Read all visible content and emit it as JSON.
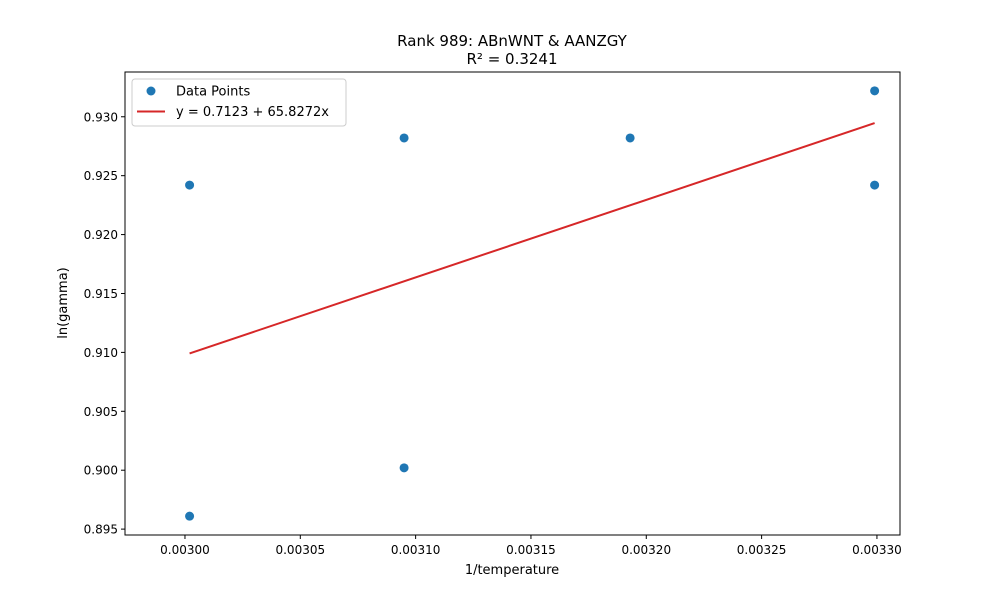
{
  "chart_data": {
    "type": "scatter",
    "title": "Rank 989: ABnWNT & AANZGY",
    "subtitle": "R² = 0.3241",
    "xlabel": "1/temperature",
    "ylabel": "ln(gamma)",
    "xlim": [
      0.002974,
      0.00331
    ],
    "ylim": [
      0.8945,
      0.9338
    ],
    "x_ticks": [
      0.003,
      0.00305,
      0.0031,
      0.00315,
      0.0032,
      0.00325,
      0.0033
    ],
    "x_tick_labels": [
      "0.00300",
      "0.00305",
      "0.00310",
      "0.00315",
      "0.00320",
      "0.00325",
      "0.00330"
    ],
    "y_ticks": [
      0.895,
      0.9,
      0.905,
      0.91,
      0.915,
      0.92,
      0.925,
      0.93
    ],
    "y_tick_labels": [
      "0.895",
      "0.900",
      "0.905",
      "0.910",
      "0.915",
      "0.920",
      "0.925",
      "0.930"
    ],
    "grid": false,
    "legend_position": "top-left",
    "series": [
      {
        "name": "Data Points",
        "kind": "scatter",
        "color": "#1f77b4",
        "x": [
          0.003002,
          0.003002,
          0.003095,
          0.003095,
          0.003193,
          0.003299,
          0.003299
        ],
        "y": [
          0.9242,
          0.8961,
          0.9282,
          0.9002,
          0.9282,
          0.9322,
          0.9242
        ]
      },
      {
        "name": "y = 0.7123 + 65.8272x",
        "kind": "line",
        "color": "#d62728",
        "intercept": 0.7123,
        "slope": 65.8272,
        "x_range": [
          0.003002,
          0.003299
        ]
      }
    ]
  }
}
